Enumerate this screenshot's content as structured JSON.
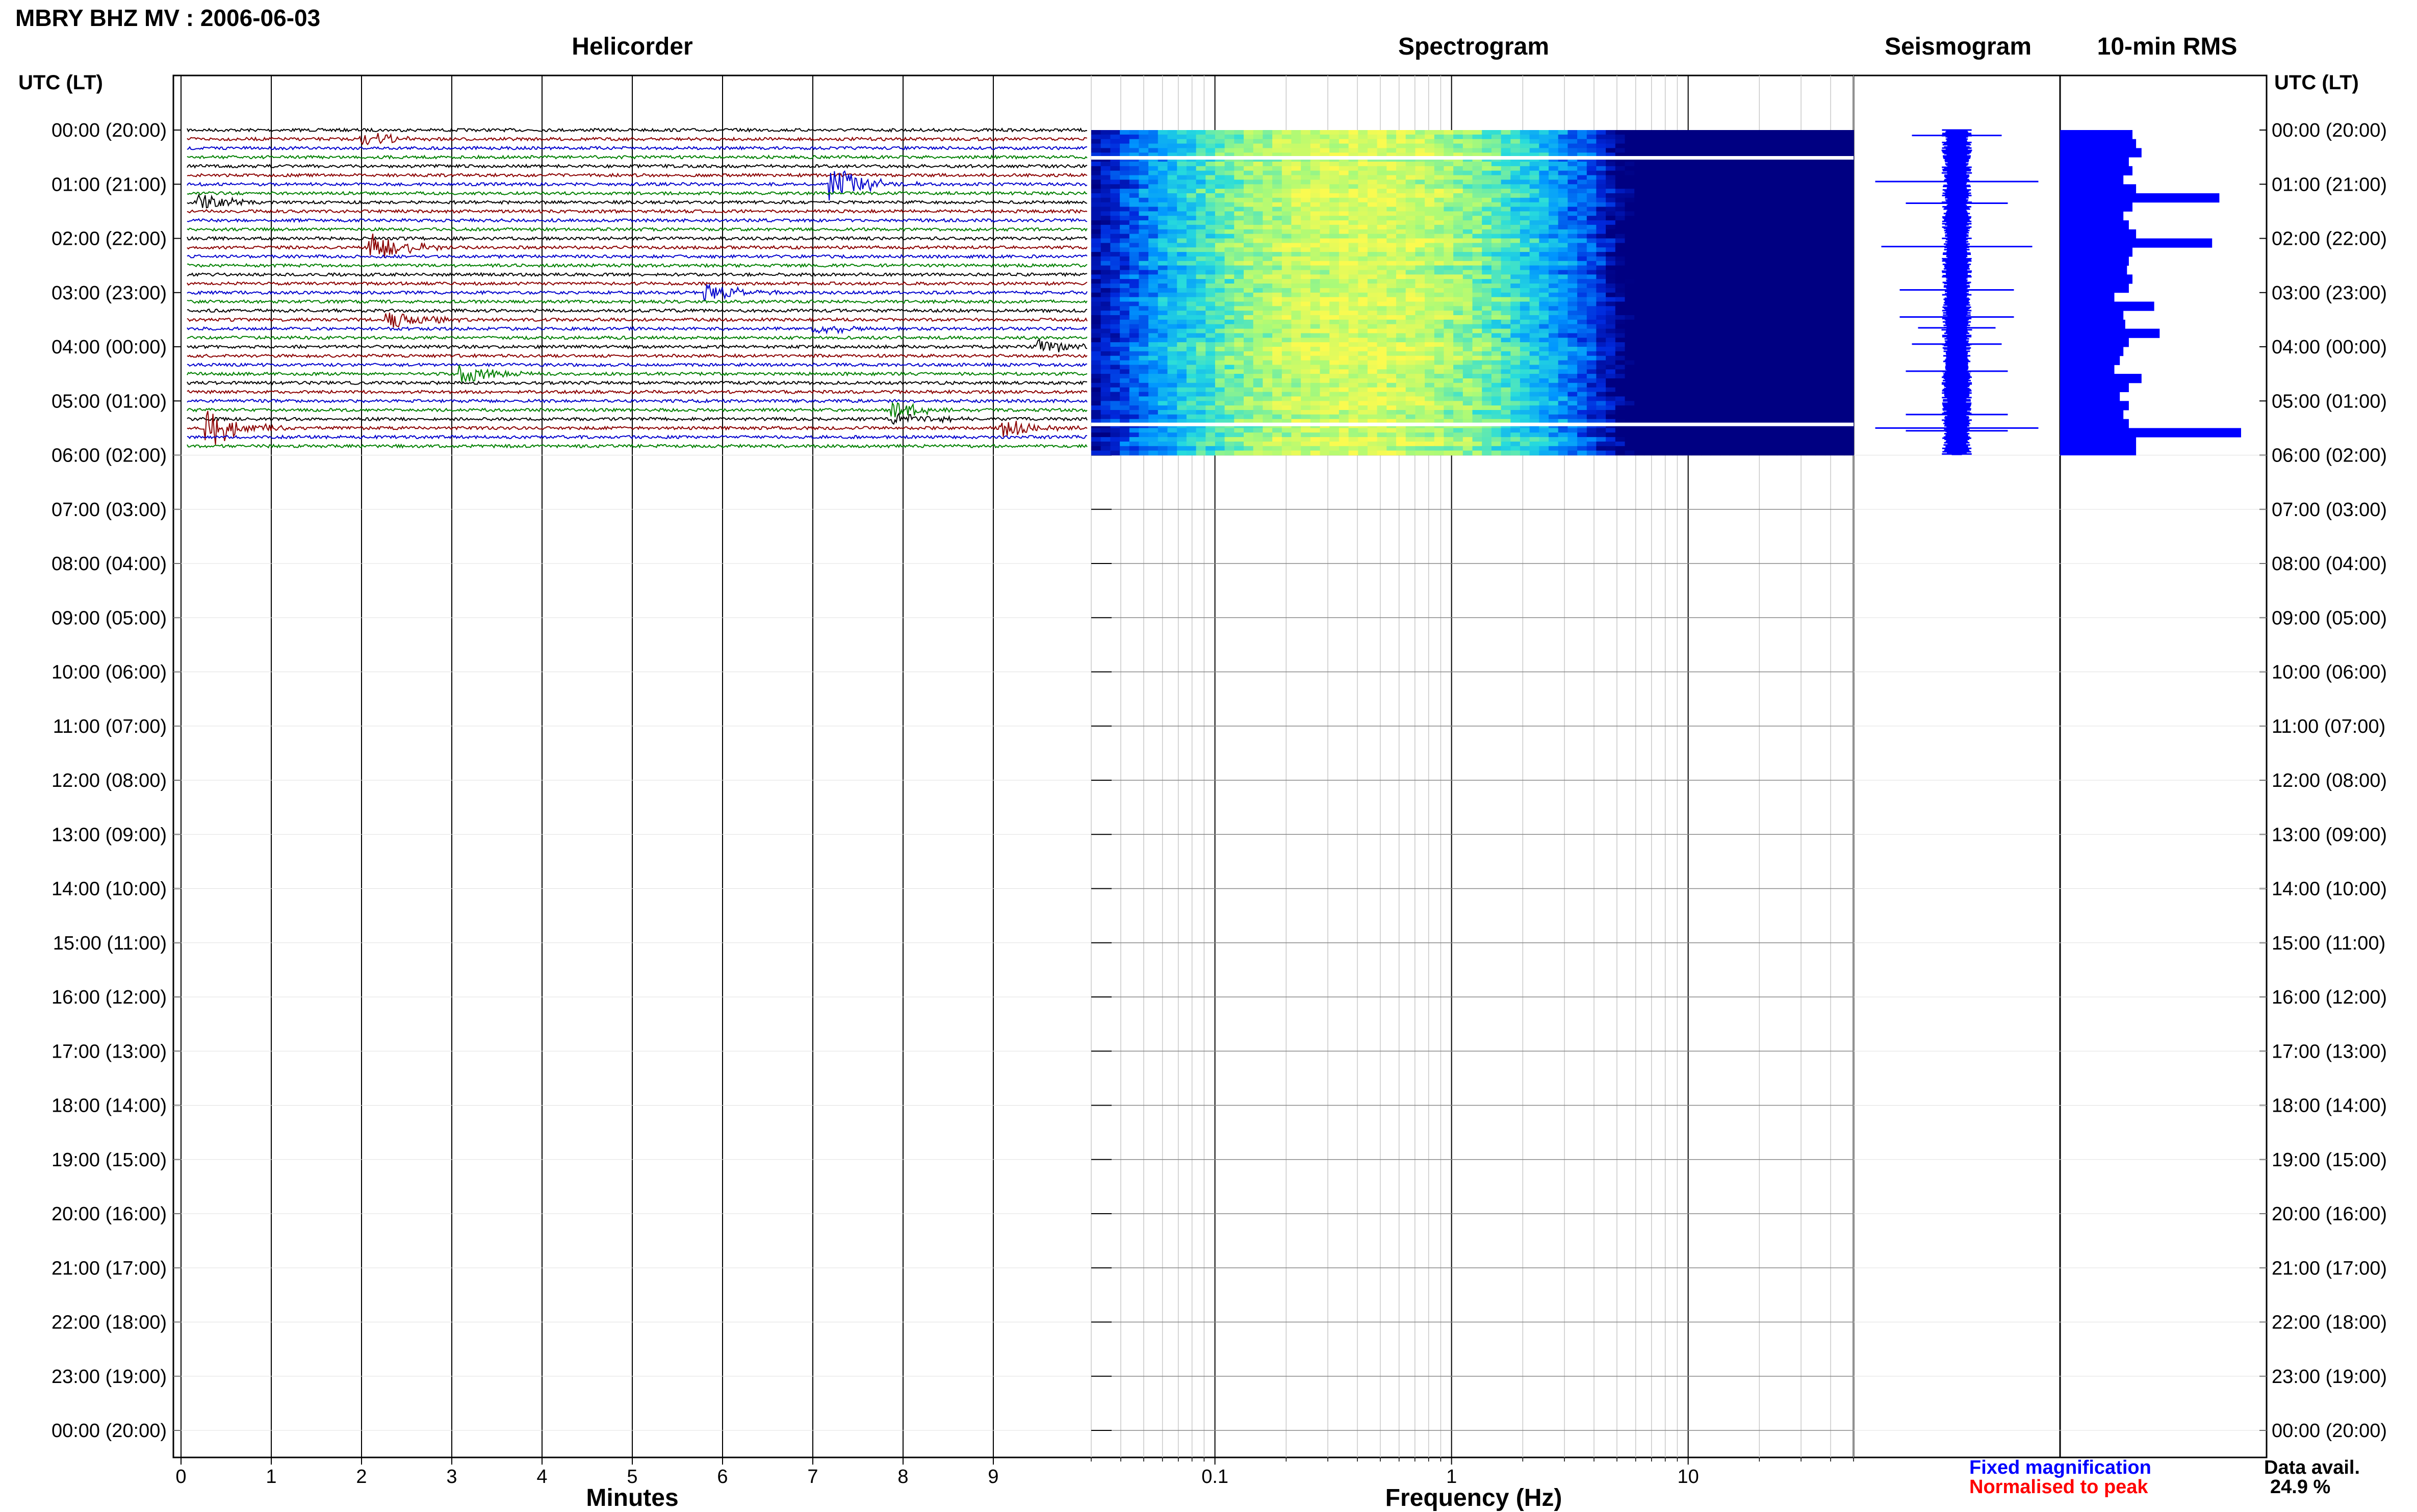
{
  "header": {
    "title": "MBRY BHZ MV : 2006-06-03",
    "panels": [
      "Helicorder",
      "Spectrogram",
      "Seismogram",
      "10-min RMS"
    ],
    "left_axis_header": "UTC (LT)",
    "right_axis_header": "UTC (LT)"
  },
  "time_labels": [
    "00:00 (20:00)",
    "01:00 (21:00)",
    "02:00 (22:00)",
    "03:00 (23:00)",
    "04:00 (00:00)",
    "05:00 (01:00)",
    "06:00 (02:00)",
    "07:00 (03:00)",
    "08:00 (04:00)",
    "09:00 (05:00)",
    "10:00 (06:00)",
    "11:00 (07:00)",
    "12:00 (08:00)",
    "13:00 (09:00)",
    "14:00 (10:00)",
    "15:00 (11:00)",
    "16:00 (12:00)",
    "17:00 (13:00)",
    "18:00 (14:00)",
    "19:00 (15:00)",
    "20:00 (16:00)",
    "21:00 (17:00)",
    "22:00 (18:00)",
    "23:00 (19:00)",
    "00:00 (20:00)"
  ],
  "helicorder": {
    "xlabel": "Minutes",
    "xticks": [
      "0",
      "1",
      "2",
      "3",
      "4",
      "5",
      "6",
      "7",
      "8",
      "9"
    ],
    "trace_colors": [
      "#000000",
      "#8b0000",
      "#0000cd",
      "#008000"
    ]
  },
  "spectrogram": {
    "xlabel": "Frequency (Hz)",
    "xticks": [
      "0.1",
      "1",
      "10"
    ],
    "xlim": [
      0.03,
      50
    ]
  },
  "legend": {
    "fixed": "Fixed magnification",
    "normalised": "Normalised to peak",
    "fixed_color": "#0000ff",
    "normalised_color": "#ff0000",
    "avail_label": "Data avail.",
    "avail_value": "24.9 %"
  },
  "chart_data": {
    "type": "bar",
    "title": "10-min RMS",
    "categories_hours_utc": [
      0.0,
      0.1667,
      0.3333,
      0.5,
      0.6667,
      0.8333,
      1.0,
      1.1667,
      1.3333,
      1.5,
      1.6667,
      1.8333,
      2.0,
      2.1667,
      2.3333,
      2.5,
      2.6667,
      2.8333,
      3.0,
      3.1667,
      3.3333,
      3.5,
      3.6667,
      3.8333,
      4.0,
      4.1667,
      4.3333,
      4.5,
      4.6667,
      4.8333,
      5.0,
      5.1667,
      5.3333,
      5.5,
      5.6667,
      5.8333
    ],
    "values_relative": [
      0.4,
      0.42,
      0.45,
      0.38,
      0.4,
      0.35,
      0.42,
      0.88,
      0.4,
      0.35,
      0.38,
      0.42,
      0.84,
      0.4,
      0.38,
      0.37,
      0.4,
      0.38,
      0.3,
      0.52,
      0.35,
      0.36,
      0.55,
      0.38,
      0.35,
      0.33,
      0.3,
      0.45,
      0.38,
      0.33,
      0.38,
      0.35,
      0.38,
      1.0,
      0.42,
      0.42
    ],
    "data_available_percent": 24.9,
    "events": [
      {
        "hour": 0.1,
        "minute": 2.0,
        "amp": 0.4
      },
      {
        "hour": 0.95,
        "minute": 7.2,
        "amp": 1.0
      },
      {
        "hour": 1.35,
        "minute": 0.2,
        "amp": 0.5
      },
      {
        "hour": 2.15,
        "minute": 2.1,
        "amp": 0.9
      },
      {
        "hour": 2.95,
        "minute": 5.8,
        "amp": 0.6
      },
      {
        "hour": 3.45,
        "minute": 2.3,
        "amp": 0.6
      },
      {
        "hour": 3.65,
        "minute": 7.0,
        "amp": 0.3
      },
      {
        "hour": 3.95,
        "minute": 9.5,
        "amp": 0.4
      },
      {
        "hour": 4.45,
        "minute": 3.1,
        "amp": 0.5
      },
      {
        "hour": 5.25,
        "minute": 7.9,
        "amp": 0.5
      },
      {
        "hour": 5.5,
        "minute": 0.3,
        "amp": 1.0
      },
      {
        "hour": 5.55,
        "minute": 9.1,
        "amp": 0.5
      }
    ]
  }
}
